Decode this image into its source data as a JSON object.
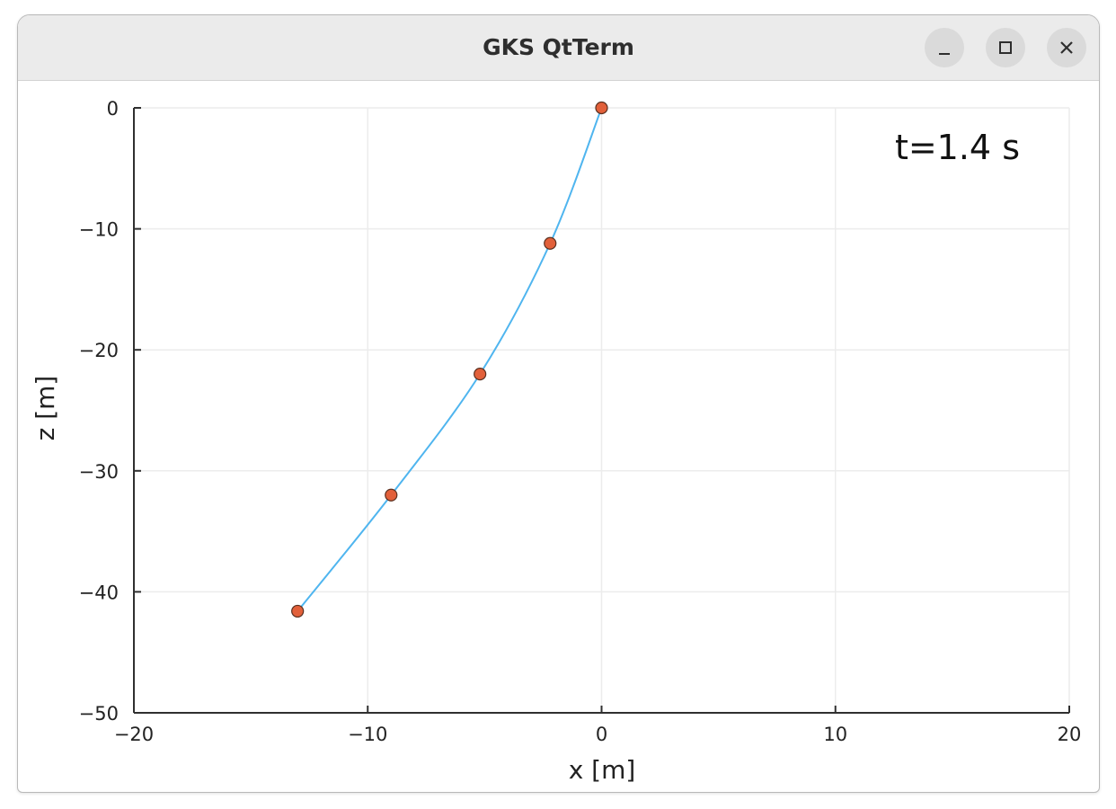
{
  "window": {
    "title": "GKS QtTerm",
    "controls": {
      "minimize_icon": "minimize-icon",
      "maximize_icon": "maximize-icon",
      "close_icon": "close-icon"
    }
  },
  "colors": {
    "line": "#4fb5ef",
    "marker_fill": "#e2603a",
    "marker_stroke": "#5a3020",
    "axis": "#303030",
    "grid": "#ececec",
    "titlebar": "#ebebeb"
  },
  "chart_data": {
    "type": "line",
    "title": "",
    "annotation": "t=1.4 s",
    "xlabel": "x [m]",
    "ylabel": "z [m]",
    "xlim": [
      -20,
      20
    ],
    "ylim": [
      -50,
      0
    ],
    "xticks": [
      -20,
      -10,
      0,
      10,
      20
    ],
    "xtick_labels": [
      "−20",
      "−10",
      "0",
      "10",
      "20"
    ],
    "yticks": [
      0,
      -10,
      -20,
      -30,
      -40,
      -50
    ],
    "ytick_labels": [
      "0",
      "−10",
      "−20",
      "−30",
      "−40",
      "−50"
    ],
    "grid": true,
    "legend": "none",
    "series": [
      {
        "x": [
          0,
          -2.2,
          -5.2,
          -9.0,
          -13.0
        ],
        "y": [
          0,
          -11.2,
          -22.0,
          -32.0,
          -41.6
        ],
        "markers": true
      }
    ]
  }
}
